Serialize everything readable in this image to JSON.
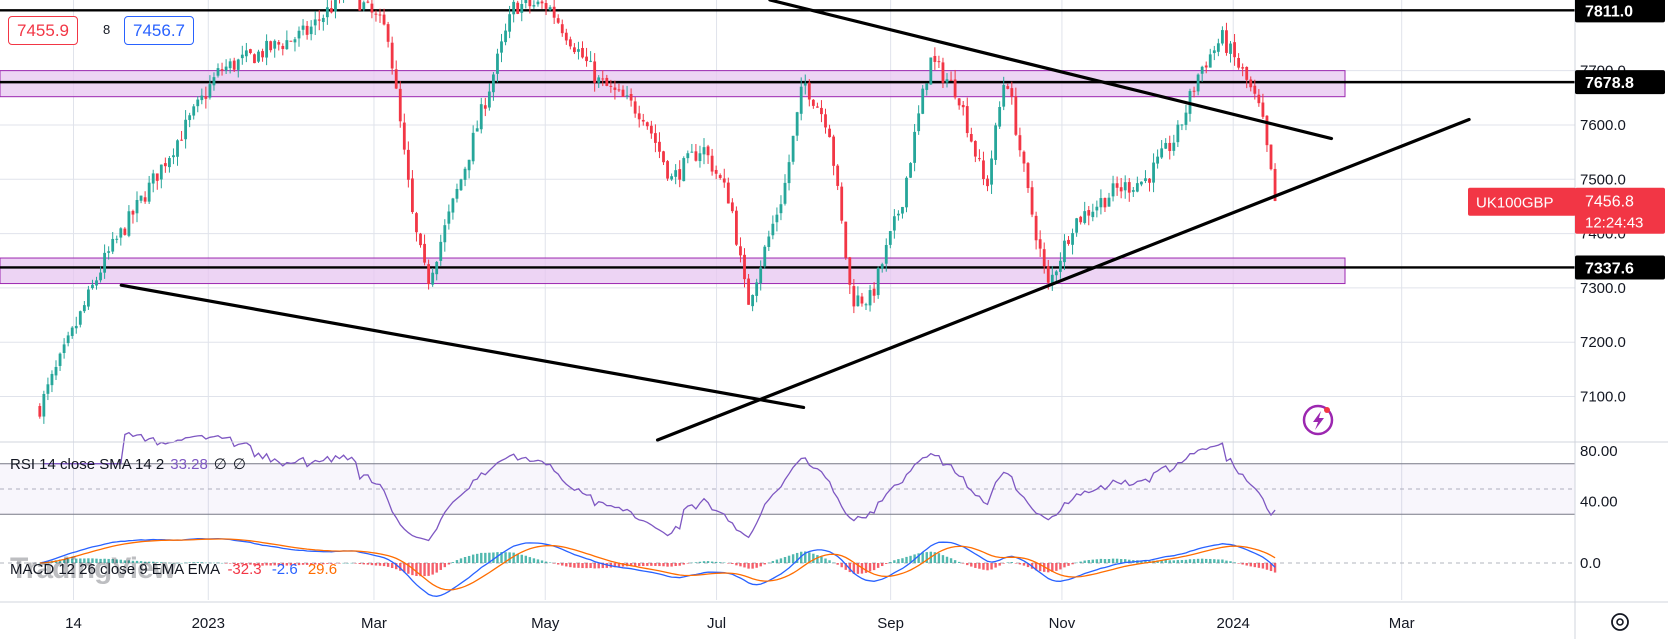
{
  "header": {
    "bid": "7455.9",
    "spread": "8",
    "ask": "7456.7"
  },
  "symbol_badge": {
    "symbol": "UK100GBP",
    "price": "7456.8",
    "countdown": "12:24:43"
  },
  "rsi_legend": {
    "label": "RSI 14 close SMA 14 2",
    "value": "33.28",
    "extra1": "∅",
    "extra2": "∅"
  },
  "macd_legend": {
    "label": "MACD 12 26 close 9 EMA EMA",
    "hist": "-32.3",
    "macd": "-2.6",
    "signal": "29.6"
  },
  "watermark": "TradingView",
  "colors": {
    "up": "#26a69a",
    "down": "#f23645",
    "zone_fill": "#e7c6f0",
    "zone_border": "#9c27b0",
    "rsi_line": "#7e57c2",
    "macd_line": "#2962ff",
    "signal_line": "#ff6d00",
    "badge": "#f23645"
  },
  "icons": {
    "settings": "gear-icon",
    "flash": "flash-icon"
  },
  "chart_data": {
    "type": "candlestick",
    "price_axis": {
      "ylim": [
        7020,
        7830
      ],
      "ticks": [
        "7100.0",
        "7200.0",
        "7300.0",
        "7400.0",
        "7500.0",
        "7600.0",
        "7700.0"
      ]
    },
    "time_axis": {
      "ticks": [
        "14",
        "2023",
        "Mar",
        "May",
        "Jul",
        "Sep",
        "Nov",
        "2024",
        "Mar"
      ]
    },
    "horizontal_lines": [
      {
        "label": "7811.0",
        "value": 7811.0
      },
      {
        "label": "7678.8",
        "value": 7678.8
      },
      {
        "label": "7337.6",
        "value": 7337.6
      }
    ],
    "zones": [
      {
        "from": 7652,
        "to": 7700
      },
      {
        "from": 7308,
        "to": 7355
      }
    ],
    "trendlines": [
      {
        "from": [
          "2022-12-01",
          7305
        ],
        "to": [
          "2023-08-01",
          7080
        ]
      },
      {
        "from": [
          "2023-06-10",
          7020
        ],
        "to": [
          "2024-03-25",
          7610
        ]
      },
      {
        "from": [
          "2023-07-20",
          7830
        ],
        "to": [
          "2024-02-05",
          7575
        ]
      }
    ],
    "anchors": [
      [
        "2022-11-02",
        7080
      ],
      [
        "2022-11-25",
        7350
      ],
      [
        "2022-12-15",
        7520
      ],
      [
        "2023-01-05",
        7700
      ],
      [
        "2023-02-05",
        7770
      ],
      [
        "2023-02-20",
        7850
      ],
      [
        "2023-03-06",
        7770
      ],
      [
        "2023-03-15",
        7420
      ],
      [
        "2023-03-20",
        7310
      ],
      [
        "2023-04-01",
        7500
      ],
      [
        "2023-04-20",
        7820
      ],
      [
        "2023-05-02",
        7820
      ],
      [
        "2023-05-20",
        7680
      ],
      [
        "2023-06-05",
        7620
      ],
      [
        "2023-06-15",
        7500
      ],
      [
        "2023-06-26",
        7560
      ],
      [
        "2023-07-06",
        7460
      ],
      [
        "2023-07-12",
        7270
      ],
      [
        "2023-07-25",
        7480
      ],
      [
        "2023-08-01",
        7680
      ],
      [
        "2023-08-10",
        7600
      ],
      [
        "2023-08-18",
        7280
      ],
      [
        "2023-08-25",
        7280
      ],
      [
        "2023-09-05",
        7460
      ],
      [
        "2023-09-15",
        7720
      ],
      [
        "2023-09-25",
        7660
      ],
      [
        "2023-10-05",
        7480
      ],
      [
        "2023-10-12",
        7700
      ],
      [
        "2023-10-20",
        7470
      ],
      [
        "2023-10-27",
        7300
      ],
      [
        "2023-11-05",
        7420
      ],
      [
        "2023-11-20",
        7480
      ],
      [
        "2023-12-01",
        7500
      ],
      [
        "2023-12-12",
        7580
      ],
      [
        "2023-12-20",
        7700
      ],
      [
        "2023-12-28",
        7760
      ],
      [
        "2024-01-05",
        7690
      ],
      [
        "2024-01-11",
        7620
      ],
      [
        "2024-01-16",
        7456.8
      ]
    ],
    "indicators": {
      "rsi": {
        "levels": [
          70,
          50,
          30
        ],
        "ticks": [
          "80.00",
          "40.00"
        ],
        "last": 33.28
      },
      "macd": {
        "zero_tick": "0.0",
        "hist": -32.3,
        "macd": -2.6,
        "signal": 29.6
      }
    }
  }
}
